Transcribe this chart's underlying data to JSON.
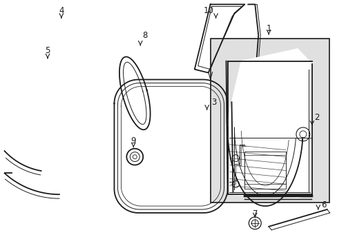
{
  "bg_color": "#ffffff",
  "line_color": "#1a1a1a",
  "box_fill": "#e0e0e0",
  "label_fontsize": 8.5,
  "lw_main": 1.3,
  "lw_thin": 0.7,
  "lw_med": 1.0
}
